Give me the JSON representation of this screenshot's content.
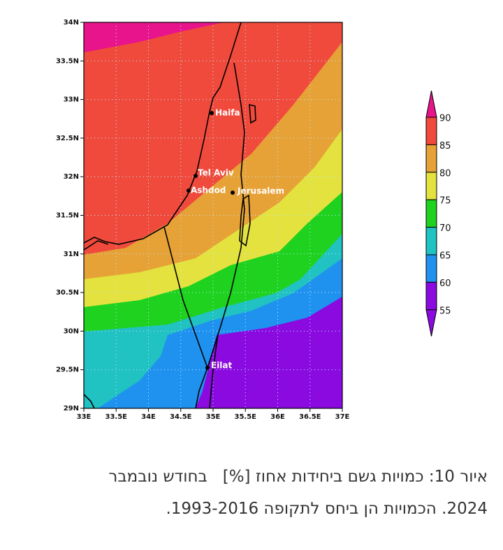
{
  "map": {
    "lat_ticks": [
      "34N",
      "33.5N",
      "33N",
      "32.5N",
      "32N",
      "31.5N",
      "31N",
      "30.5N",
      "30N",
      "29.5N",
      "29N"
    ],
    "lon_ticks": [
      "33E",
      "33.5E",
      "34E",
      "34.5E",
      "35E",
      "35.5E",
      "36E",
      "36.5E",
      "37E"
    ],
    "cities": [
      {
        "name": "Haifa"
      },
      {
        "name": "Tel Aviv"
      },
      {
        "name": "Ashdod"
      },
      {
        "name": "Jerusalem"
      },
      {
        "name": "Eilat"
      }
    ],
    "colorbar": {
      "labels": [
        "90",
        "85",
        "80",
        "75",
        "70",
        "65",
        "60",
        "55"
      ],
      "colors": [
        "#e8148c",
        "#f04a3c",
        "#e6a236",
        "#e4e23e",
        "#1fd21f",
        "#20c2c2",
        "#1f92f0",
        "#8a0ae0",
        "#8a0ae0"
      ]
    }
  },
  "caption": {
    "lines": [
      "איור 10: כמויות גשם ביחידות אחוז [%]   בחודש נובמבר",
      "2024. הכמויות הן ביחס לתקופה 1993-2016."
    ]
  }
}
